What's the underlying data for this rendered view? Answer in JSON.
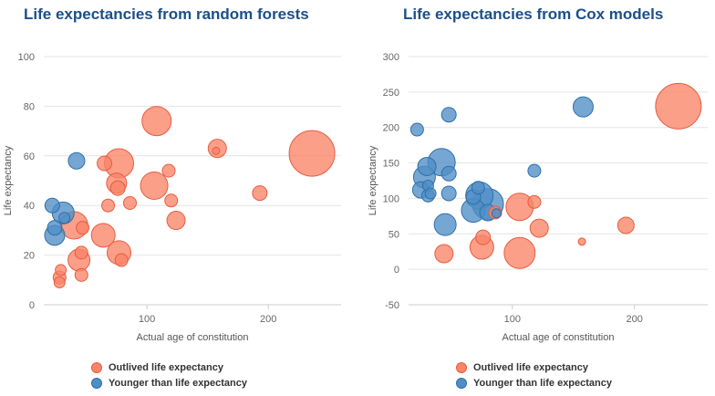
{
  "chart_data": [
    {
      "type": "scatter",
      "title": "Life expectancies from random forests",
      "xlabel": "Actual age of constitution",
      "ylabel": "Life expectancy",
      "xlim": [
        15,
        260
      ],
      "ylim": [
        0,
        100
      ],
      "x_ticks": [
        100,
        200
      ],
      "y_ticks": [
        0,
        20,
        40,
        60,
        80,
        100
      ],
      "grid": true,
      "legend_position": "bottom-center",
      "series": [
        {
          "name": "Outlived life expectancy",
          "color": "#fa8468",
          "points": [
            {
              "x": 236,
              "y": 61,
              "r": 25
            },
            {
              "x": 108,
              "y": 74,
              "r": 16
            },
            {
              "x": 77,
              "y": 57,
              "r": 16
            },
            {
              "x": 106,
              "y": 48,
              "r": 15
            },
            {
              "x": 40,
              "y": 32,
              "r": 15
            },
            {
              "x": 64,
              "y": 28,
              "r": 13
            },
            {
              "x": 75,
              "y": 49,
              "r": 11
            },
            {
              "x": 158,
              "y": 63,
              "r": 10
            },
            {
              "x": 77,
              "y": 21,
              "r": 13
            },
            {
              "x": 44,
              "y": 18,
              "r": 12
            },
            {
              "x": 124,
              "y": 34,
              "r": 10
            },
            {
              "x": 65,
              "y": 57,
              "r": 8
            },
            {
              "x": 193,
              "y": 45,
              "r": 8
            },
            {
              "x": 76,
              "y": 47,
              "r": 8
            },
            {
              "x": 86,
              "y": 41,
              "r": 7
            },
            {
              "x": 118,
              "y": 54,
              "r": 7
            },
            {
              "x": 120,
              "y": 42,
              "r": 7
            },
            {
              "x": 68,
              "y": 40,
              "r": 7
            },
            {
              "x": 47,
              "y": 31,
              "r": 7
            },
            {
              "x": 46,
              "y": 21,
              "r": 7
            },
            {
              "x": 46,
              "y": 12,
              "r": 7
            },
            {
              "x": 28,
              "y": 11,
              "r": 7
            },
            {
              "x": 79,
              "y": 18,
              "r": 7
            },
            {
              "x": 29,
              "y": 14,
              "r": 6
            },
            {
              "x": 28,
              "y": 9,
              "r": 6
            },
            {
              "x": 157,
              "y": 62,
              "r": 4
            }
          ]
        },
        {
          "name": "Younger than life expectancy",
          "color": "#4f8ec6",
          "points": [
            {
              "x": 31,
              "y": 37,
              "r": 12
            },
            {
              "x": 24,
              "y": 28,
              "r": 11
            },
            {
              "x": 42,
              "y": 58,
              "r": 9
            },
            {
              "x": 22,
              "y": 40,
              "r": 8
            },
            {
              "x": 24,
              "y": 31,
              "r": 8
            },
            {
              "x": 32,
              "y": 35,
              "r": 6
            }
          ]
        }
      ]
    },
    {
      "type": "scatter",
      "title": "Life expectancies from Cox models",
      "xlabel": "Actual age of constitution",
      "ylabel": "Life expectancy",
      "xlim": [
        15,
        260
      ],
      "ylim": [
        -50,
        300
      ],
      "x_ticks": [
        100,
        200
      ],
      "y_ticks": [
        -50,
        0,
        50,
        100,
        150,
        200,
        250,
        300
      ],
      "grid": true,
      "legend_position": "bottom-center",
      "series": [
        {
          "name": "Outlived life expectancy",
          "color": "#fa8468",
          "points": [
            {
              "x": 236,
              "y": 230,
              "r": 25
            },
            {
              "x": 106,
              "y": 23,
              "r": 17
            },
            {
              "x": 106,
              "y": 88,
              "r": 15
            },
            {
              "x": 75,
              "y": 31,
              "r": 13
            },
            {
              "x": 122,
              "y": 58,
              "r": 10
            },
            {
              "x": 44,
              "y": 22,
              "r": 10
            },
            {
              "x": 193,
              "y": 62,
              "r": 9
            },
            {
              "x": 76,
              "y": 45,
              "r": 8
            },
            {
              "x": 86,
              "y": 80,
              "r": 7
            },
            {
              "x": 118,
              "y": 95,
              "r": 7
            },
            {
              "x": 157,
              "y": 39,
              "r": 4
            }
          ]
        },
        {
          "name": "Younger than life expectancy",
          "color": "#4f8ec6",
          "points": [
            {
              "x": 80,
              "y": 92,
              "r": 17
            },
            {
              "x": 73,
              "y": 104,
              "r": 15
            },
            {
              "x": 42,
              "y": 151,
              "r": 15
            },
            {
              "x": 68,
              "y": 83,
              "r": 13
            },
            {
              "x": 28,
              "y": 130,
              "r": 12
            },
            {
              "x": 45,
              "y": 63,
              "r": 12
            },
            {
              "x": 158,
              "y": 229,
              "r": 11
            },
            {
              "x": 30,
              "y": 145,
              "r": 10
            },
            {
              "x": 25,
              "y": 112,
              "r": 9
            },
            {
              "x": 80,
              "y": 80,
              "r": 9
            },
            {
              "x": 48,
              "y": 218,
              "r": 8
            },
            {
              "x": 48,
              "y": 135,
              "r": 8
            },
            {
              "x": 48,
              "y": 107,
              "r": 8
            },
            {
              "x": 68,
              "y": 102,
              "r": 8
            },
            {
              "x": 72,
              "y": 115,
              "r": 7
            },
            {
              "x": 22,
              "y": 197,
              "r": 7
            },
            {
              "x": 118,
              "y": 139,
              "r": 7
            },
            {
              "x": 31,
              "y": 104,
              "r": 7
            },
            {
              "x": 31,
              "y": 118,
              "r": 6
            },
            {
              "x": 33,
              "y": 107,
              "r": 6
            },
            {
              "x": 87,
              "y": 79,
              "r": 5
            }
          ]
        }
      ]
    }
  ]
}
